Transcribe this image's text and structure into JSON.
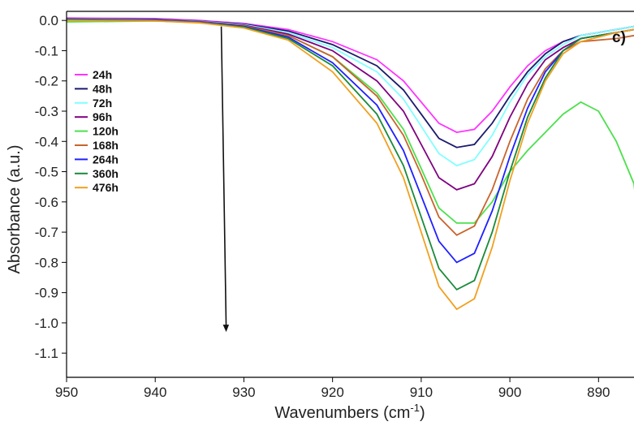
{
  "chart_data": {
    "type": "line",
    "title": "",
    "panel_label": "c)",
    "xlabel_main": "Wavenumbers (cm",
    "xlabel_sup": "-1",
    "xlabel_tail": ")",
    "ylabel": "Absorbance (a.u.)",
    "xlim": [
      950,
      886
    ],
    "x_reversed": true,
    "ylim": [
      -1.18,
      0.03
    ],
    "xticks": [
      950,
      940,
      930,
      920,
      910,
      900,
      890
    ],
    "xtick_labels": [
      "950",
      "940",
      "930",
      "920",
      "910",
      "900",
      "890"
    ],
    "yticks": [
      0.0,
      -0.1,
      -0.2,
      -0.3,
      -0.4,
      -0.5,
      -0.6,
      -0.7,
      -0.8,
      -0.9,
      -1.0,
      -1.1
    ],
    "ytick_labels": [
      "0.0",
      "-0.1",
      "-0.2",
      "-0.3",
      "-0.4",
      "-0.5",
      "-0.6",
      "-0.7",
      "-0.8",
      "-0.9",
      "-1.0",
      "-1.1"
    ],
    "grid": false,
    "legend_position": "left",
    "annotation": "downward arrow indicating decreasing absorbance with time",
    "arrow": {
      "x": 932,
      "y_start": -0.02,
      "y_end": -1.03
    },
    "series": [
      {
        "name": "24h",
        "color": "#ff33ff",
        "points": [
          [
            950,
            0.008
          ],
          [
            940,
            0.006
          ],
          [
            935,
            0.0
          ],
          [
            930,
            -0.01
          ],
          [
            925,
            -0.03
          ],
          [
            920,
            -0.07
          ],
          [
            915,
            -0.13
          ],
          [
            912,
            -0.2
          ],
          [
            910,
            -0.27
          ],
          [
            908,
            -0.34
          ],
          [
            906,
            -0.37
          ],
          [
            904,
            -0.36
          ],
          [
            902,
            -0.3
          ],
          [
            900,
            -0.22
          ],
          [
            898,
            -0.15
          ],
          [
            896,
            -0.1
          ],
          [
            894,
            -0.07
          ],
          [
            892,
            -0.05
          ],
          [
            888,
            -0.03
          ],
          [
            886,
            -0.02
          ]
        ]
      },
      {
        "name": "48h",
        "color": "#1a1a6e",
        "points": [
          [
            950,
            0.006
          ],
          [
            940,
            0.004
          ],
          [
            935,
            -0.002
          ],
          [
            930,
            -0.012
          ],
          [
            925,
            -0.035
          ],
          [
            920,
            -0.08
          ],
          [
            915,
            -0.15
          ],
          [
            912,
            -0.23
          ],
          [
            910,
            -0.31
          ],
          [
            908,
            -0.39
          ],
          [
            906,
            -0.42
          ],
          [
            904,
            -0.41
          ],
          [
            902,
            -0.34
          ],
          [
            900,
            -0.25
          ],
          [
            898,
            -0.17
          ],
          [
            896,
            -0.11
          ],
          [
            894,
            -0.07
          ],
          [
            892,
            -0.05
          ],
          [
            888,
            -0.03
          ],
          [
            886,
            -0.02
          ]
        ]
      },
      {
        "name": "72h",
        "color": "#80ffff",
        "points": [
          [
            950,
            0.005
          ],
          [
            940,
            0.003
          ],
          [
            935,
            -0.003
          ],
          [
            930,
            -0.014
          ],
          [
            925,
            -0.04
          ],
          [
            920,
            -0.09
          ],
          [
            915,
            -0.17
          ],
          [
            912,
            -0.26
          ],
          [
            910,
            -0.35
          ],
          [
            908,
            -0.44
          ],
          [
            906,
            -0.48
          ],
          [
            904,
            -0.46
          ],
          [
            902,
            -0.38
          ],
          [
            900,
            -0.27
          ],
          [
            898,
            -0.18
          ],
          [
            896,
            -0.12
          ],
          [
            894,
            -0.08
          ],
          [
            892,
            -0.05
          ],
          [
            888,
            -0.03
          ],
          [
            886,
            -0.02
          ]
        ]
      },
      {
        "name": "96h",
        "color": "#800080",
        "points": [
          [
            950,
            0.004
          ],
          [
            940,
            0.002
          ],
          [
            935,
            -0.004
          ],
          [
            930,
            -0.016
          ],
          [
            925,
            -0.045
          ],
          [
            920,
            -0.1
          ],
          [
            915,
            -0.2
          ],
          [
            912,
            -0.3
          ],
          [
            910,
            -0.41
          ],
          [
            908,
            -0.52
          ],
          [
            906,
            -0.56
          ],
          [
            904,
            -0.54
          ],
          [
            902,
            -0.45
          ],
          [
            900,
            -0.32
          ],
          [
            898,
            -0.21
          ],
          [
            896,
            -0.13
          ],
          [
            894,
            -0.09
          ],
          [
            892,
            -0.06
          ],
          [
            888,
            -0.04
          ],
          [
            886,
            -0.03
          ]
        ]
      },
      {
        "name": "120h",
        "color": "#4de04d",
        "points": [
          [
            950,
            -0.005
          ],
          [
            940,
            -0.002
          ],
          [
            935,
            -0.006
          ],
          [
            930,
            -0.018
          ],
          [
            925,
            -0.05
          ],
          [
            920,
            -0.12
          ],
          [
            915,
            -0.24
          ],
          [
            912,
            -0.36
          ],
          [
            910,
            -0.49
          ],
          [
            908,
            -0.62
          ],
          [
            906,
            -0.67
          ],
          [
            904,
            -0.67
          ],
          [
            902,
            -0.6
          ],
          [
            900,
            -0.5
          ],
          [
            898,
            -0.43
          ],
          [
            896,
            -0.37
          ],
          [
            894,
            -0.31
          ],
          [
            892,
            -0.27
          ],
          [
            890,
            -0.3
          ],
          [
            888,
            -0.4
          ],
          [
            886,
            -0.54
          ],
          [
            885.5,
            -0.67
          ]
        ]
      },
      {
        "name": "168h",
        "color": "#c8642d",
        "points": [
          [
            950,
            0.003
          ],
          [
            940,
            0.001
          ],
          [
            935,
            -0.005
          ],
          [
            930,
            -0.018
          ],
          [
            925,
            -0.05
          ],
          [
            920,
            -0.12
          ],
          [
            915,
            -0.25
          ],
          [
            912,
            -0.38
          ],
          [
            910,
            -0.51
          ],
          [
            908,
            -0.65
          ],
          [
            906,
            -0.71
          ],
          [
            904,
            -0.68
          ],
          [
            902,
            -0.56
          ],
          [
            900,
            -0.4
          ],
          [
            898,
            -0.26
          ],
          [
            896,
            -0.16
          ],
          [
            894,
            -0.1
          ],
          [
            892,
            -0.07
          ],
          [
            888,
            -0.06
          ],
          [
            886,
            -0.05
          ]
        ]
      },
      {
        "name": "264h",
        "color": "#1f1fff",
        "points": [
          [
            950,
            0.002
          ],
          [
            940,
            0.0
          ],
          [
            935,
            -0.006
          ],
          [
            930,
            -0.02
          ],
          [
            925,
            -0.055
          ],
          [
            920,
            -0.14
          ],
          [
            915,
            -0.28
          ],
          [
            912,
            -0.43
          ],
          [
            910,
            -0.58
          ],
          [
            908,
            -0.73
          ],
          [
            906,
            -0.8
          ],
          [
            904,
            -0.77
          ],
          [
            902,
            -0.63
          ],
          [
            900,
            -0.45
          ],
          [
            898,
            -0.29
          ],
          [
            896,
            -0.17
          ],
          [
            894,
            -0.1
          ],
          [
            892,
            -0.06
          ],
          [
            888,
            -0.04
          ],
          [
            886,
            -0.03
          ]
        ]
      },
      {
        "name": "360h",
        "color": "#1a8a3a",
        "points": [
          [
            950,
            0.001
          ],
          [
            940,
            -0.001
          ],
          [
            935,
            -0.007
          ],
          [
            930,
            -0.022
          ],
          [
            925,
            -0.06
          ],
          [
            920,
            -0.15
          ],
          [
            915,
            -0.31
          ],
          [
            912,
            -0.48
          ],
          [
            910,
            -0.65
          ],
          [
            908,
            -0.82
          ],
          [
            906,
            -0.89
          ],
          [
            904,
            -0.86
          ],
          [
            902,
            -0.7
          ],
          [
            900,
            -0.5
          ],
          [
            898,
            -0.32
          ],
          [
            896,
            -0.19
          ],
          [
            894,
            -0.1
          ],
          [
            892,
            -0.06
          ],
          [
            888,
            -0.04
          ],
          [
            886,
            -0.03
          ]
        ]
      },
      {
        "name": "476h",
        "color": "#f0a020",
        "points": [
          [
            950,
            0.0
          ],
          [
            940,
            -0.002
          ],
          [
            935,
            -0.008
          ],
          [
            930,
            -0.025
          ],
          [
            925,
            -0.065
          ],
          [
            920,
            -0.17
          ],
          [
            915,
            -0.34
          ],
          [
            912,
            -0.52
          ],
          [
            910,
            -0.7
          ],
          [
            908,
            -0.88
          ],
          [
            906,
            -0.955
          ],
          [
            904,
            -0.92
          ],
          [
            902,
            -0.75
          ],
          [
            900,
            -0.53
          ],
          [
            898,
            -0.34
          ],
          [
            896,
            -0.2
          ],
          [
            894,
            -0.11
          ],
          [
            892,
            -0.07
          ],
          [
            888,
            -0.04
          ],
          [
            886,
            -0.03
          ]
        ]
      }
    ]
  }
}
